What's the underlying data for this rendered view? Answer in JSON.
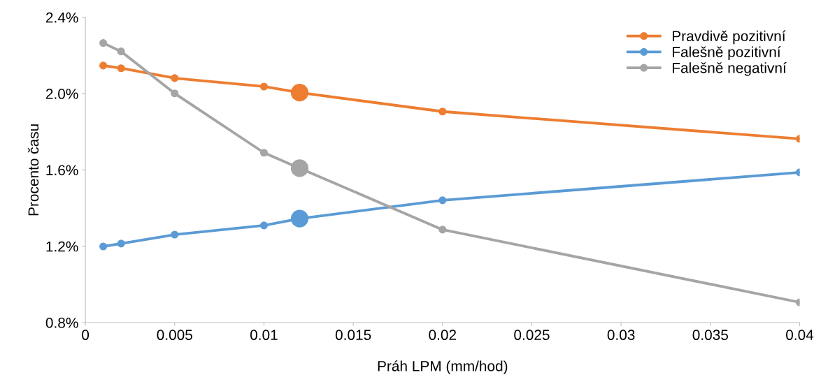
{
  "chart_data": {
    "type": "line",
    "xlabel": "Práh LPM (mm/hod)",
    "ylabel": "Procento času",
    "xlim": [
      0,
      0.04
    ],
    "xticks": [
      0,
      0.005,
      0.01,
      0.015,
      0.02,
      0.025,
      0.03,
      0.035,
      0.04
    ],
    "ylim": [
      0.8,
      2.4
    ],
    "yticks": [
      {
        "value": 0.8,
        "label": "0.8%"
      },
      {
        "value": 1.2,
        "label": "1.2%"
      },
      {
        "value": 1.6,
        "label": "1.6%"
      },
      {
        "value": 2.0,
        "label": "2.0%"
      },
      {
        "value": 2.4,
        "label": "2.4%"
      }
    ],
    "grid": false,
    "legend": "top right",
    "marker": "circle",
    "line_style": "solid",
    "series": [
      {
        "name": "Pravdivě pozitivní",
        "color": "#ed7d31",
        "x": [
          0.001,
          0.002,
          0.005,
          0.01,
          0.012,
          0.02,
          0.04
        ],
        "values": [
          2.147,
          2.133,
          2.081,
          2.037,
          2.005,
          1.906,
          1.763
        ]
      },
      {
        "name": "Falešně pozitivní",
        "color": "#5b9bd5",
        "x": [
          0.001,
          0.002,
          0.005,
          0.01,
          0.012,
          0.02,
          0.04
        ],
        "values": [
          1.199,
          1.214,
          1.261,
          1.309,
          1.345,
          1.441,
          1.587
        ]
      },
      {
        "name": "Falešně negativní",
        "color": "#a5a5a5",
        "x": [
          0.001,
          0.002,
          0.005,
          0.01,
          0.012,
          0.02,
          0.04
        ],
        "values": [
          2.265,
          2.221,
          2.001,
          1.69,
          1.609,
          1.287,
          0.906
        ]
      },
      {
        "type": "scatter",
        "color": "#ed7d31",
        "x": [
          0.012
        ],
        "values": [
          2.005
        ]
      },
      {
        "type": "scatter",
        "color": "#5b9bd5",
        "x": [
          0.012
        ],
        "values": [
          1.345
        ]
      },
      {
        "type": "scatter",
        "color": "#a5a5a5",
        "x": [
          0.012
        ],
        "values": [
          1.609
        ]
      }
    ]
  }
}
